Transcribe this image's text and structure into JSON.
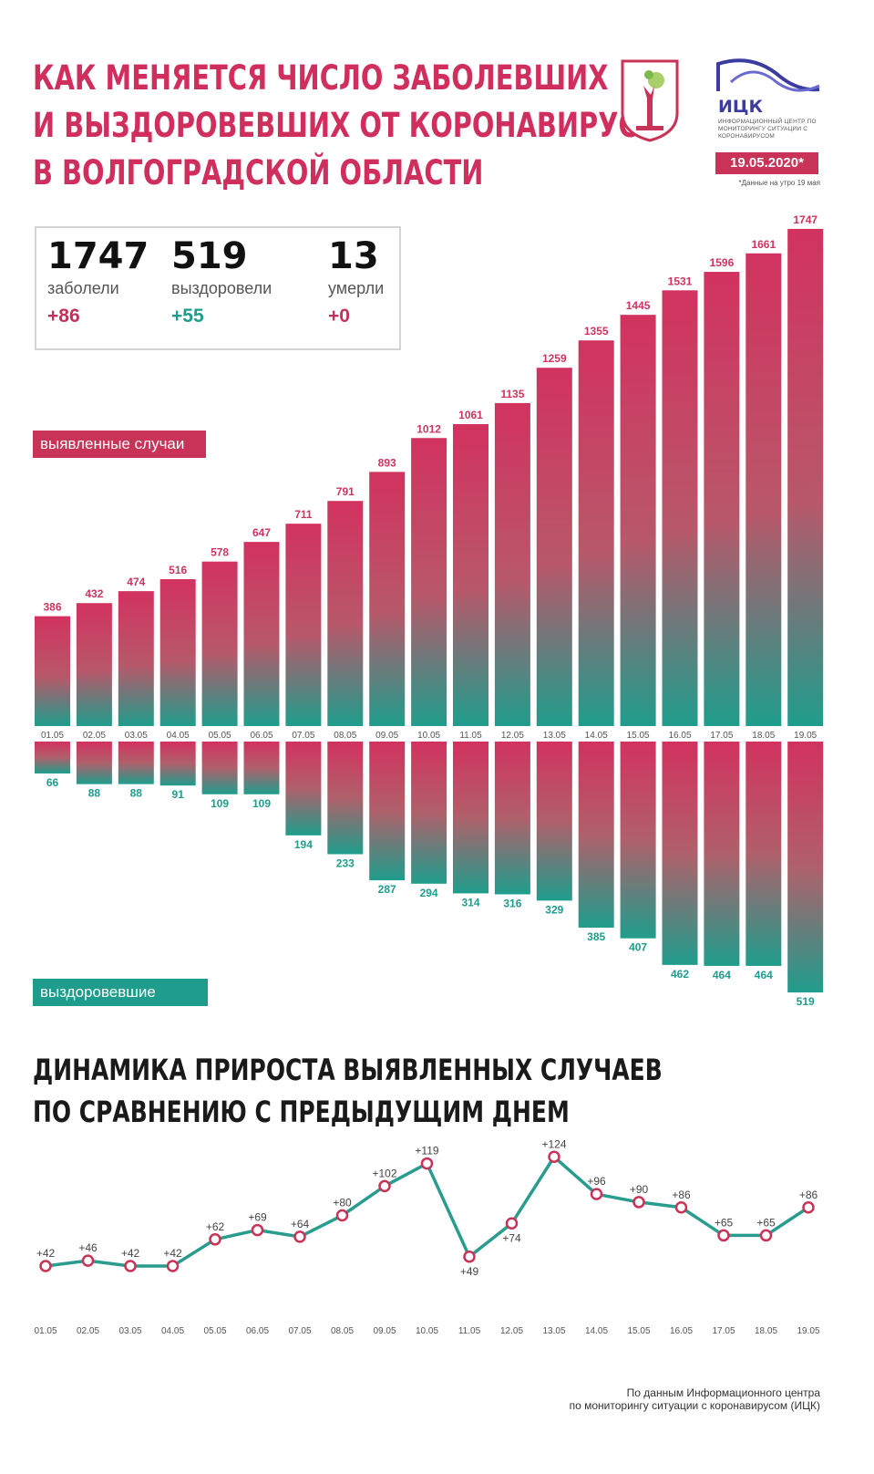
{
  "header": {
    "title_lines": [
      "КАК МЕНЯЕТСЯ ЧИСЛО ЗАБОЛЕВШИХ",
      "И ВЫЗДОРОВЕВШИХ ОТ КОРОНАВИРУСА",
      "В ВОЛГОГРАДСКОЙ ОБЛАСТИ"
    ],
    "logo_abbr": "ИЦК",
    "logo_text": "Информационный центр по мониторингу ситуации с коронавирусом",
    "date": "19.05.2020*",
    "date_note": "*Данные на утро 19 мая"
  },
  "stats": [
    {
      "value": "1747",
      "label": "заболели",
      "delta": "+86",
      "color": "#c2315a"
    },
    {
      "value": "519",
      "label": "выздоровели",
      "delta": "+55",
      "color": "#1f9d8c"
    },
    {
      "value": "13",
      "label": "умерли",
      "delta": "+0",
      "color": "#c2315a"
    }
  ],
  "legend": {
    "cases": "выявленные случаи",
    "recovered": "выздоровевшие"
  },
  "colors": {
    "pink": "#cf3461",
    "teal": "#1f9d8c",
    "line": "#2a9c8e"
  },
  "subtitle_lines": [
    "ДИНАМИКА ПРИРОСТА ВЫЯВЛЕННЫХ СЛУЧАЕВ",
    "ПО СРАВНЕНИЮ С ПРЕДЫДУЩИМ ДНЕМ"
  ],
  "footer_lines": [
    "По данным Информационного центра",
    "по мониторингу ситуации с коронавирусом (ИЦК)"
  ],
  "chart_data": [
    {
      "type": "bar",
      "categories": [
        "01.05",
        "02.05",
        "03.05",
        "04.05",
        "05.05",
        "06.05",
        "07.05",
        "08.05",
        "09.05",
        "10.05",
        "11.05",
        "12.05",
        "13.05",
        "14.05",
        "15.05",
        "16.05",
        "17.05",
        "18.05",
        "19.05"
      ],
      "series": [
        {
          "name": "выявленные случаи",
          "values": [
            386,
            432,
            474,
            516,
            578,
            647,
            711,
            791,
            893,
            1012,
            1061,
            1135,
            1259,
            1355,
            1445,
            1531,
            1596,
            1661,
            1747
          ]
        },
        {
          "name": "выздоровевшие",
          "values": [
            66,
            88,
            88,
            91,
            109,
            109,
            194,
            233,
            287,
            294,
            314,
            316,
            329,
            385,
            407,
            462,
            464,
            464,
            519
          ]
        }
      ]
    },
    {
      "type": "line",
      "x": [
        "01.05",
        "02.05",
        "03.05",
        "04.05",
        "05.05",
        "06.05",
        "07.05",
        "08.05",
        "09.05",
        "10.05",
        "11.05",
        "12.05",
        "13.05",
        "14.05",
        "15.05",
        "16.05",
        "17.05",
        "18.05",
        "19.05"
      ],
      "values": [
        42,
        46,
        42,
        42,
        62,
        69,
        64,
        80,
        102,
        119,
        49,
        74,
        124,
        96,
        90,
        86,
        65,
        65,
        86
      ],
      "labels": [
        "+42",
        "+46",
        "+42",
        "+42",
        "+62",
        "+69",
        "+64",
        "+80",
        "+102",
        "+119",
        "+49",
        "+74",
        "+124",
        "+96",
        "+90",
        "+86",
        "+65",
        "+65",
        "+86"
      ]
    }
  ]
}
